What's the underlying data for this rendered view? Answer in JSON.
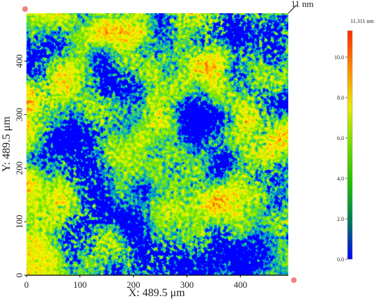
{
  "chart_data": {
    "type": "image",
    "title": "11 nm",
    "xlabel": "X: 489.5 μm",
    "ylabel": "Y: 489.5 μm",
    "xlim": [
      0,
      489.5
    ],
    "ylim": [
      0,
      489.5
    ],
    "xticks": [
      0,
      100,
      200,
      300,
      400
    ],
    "yticks": [
      0,
      100,
      200,
      300,
      400
    ],
    "colorbar": {
      "title": "11.311 nm",
      "lim": [
        0,
        11.311
      ],
      "ticks": [
        {
          "value": 0,
          "label": "0.0"
        },
        {
          "value": 2,
          "label": "2.0"
        },
        {
          "value": 4,
          "label": "4.0"
        },
        {
          "value": 6,
          "label": "6.0"
        },
        {
          "value": 8,
          "label": "8.0"
        },
        {
          "value": 10,
          "label": "10.0"
        }
      ],
      "colors": [
        "#0000ff",
        "#007a5a",
        "#1fbf00",
        "#6fdc00",
        "#e8e800",
        "#ff8a00",
        "#ff2a00"
      ]
    }
  }
}
